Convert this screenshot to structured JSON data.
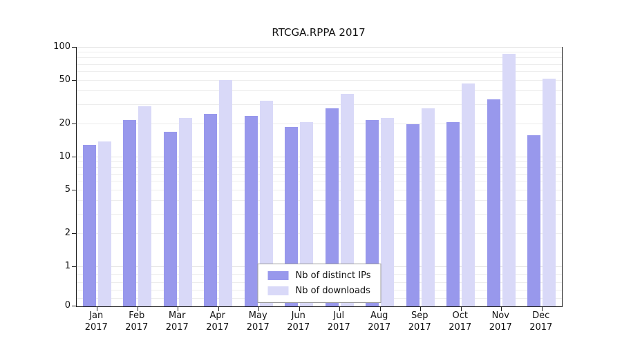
{
  "chart_data": {
    "type": "bar",
    "title": "RTCGA.RPPA 2017",
    "categories": [
      "Jan",
      "Feb",
      "Mar",
      "Apr",
      "May",
      "Jun",
      "Jul",
      "Aug",
      "Sep",
      "Oct",
      "Nov",
      "Dec"
    ],
    "x_year": "2017",
    "series": [
      {
        "name": "Nb of distinct IPs",
        "color": "#9898ec",
        "values": [
          13,
          22,
          17,
          25,
          24,
          19,
          28,
          22,
          20,
          21,
          34,
          16
        ]
      },
      {
        "name": "Nb of downloads",
        "color": "#d9d9f8",
        "values": [
          14,
          29,
          23,
          51,
          33,
          21,
          38,
          23,
          28,
          47,
          88,
          52
        ]
      }
    ],
    "y_ticks": [
      0,
      1,
      2,
      5,
      10,
      20,
      50,
      100
    ],
    "y_scale": "symlog",
    "ylim": [
      0,
      100
    ],
    "grid": true,
    "legend_position": "lower center"
  }
}
